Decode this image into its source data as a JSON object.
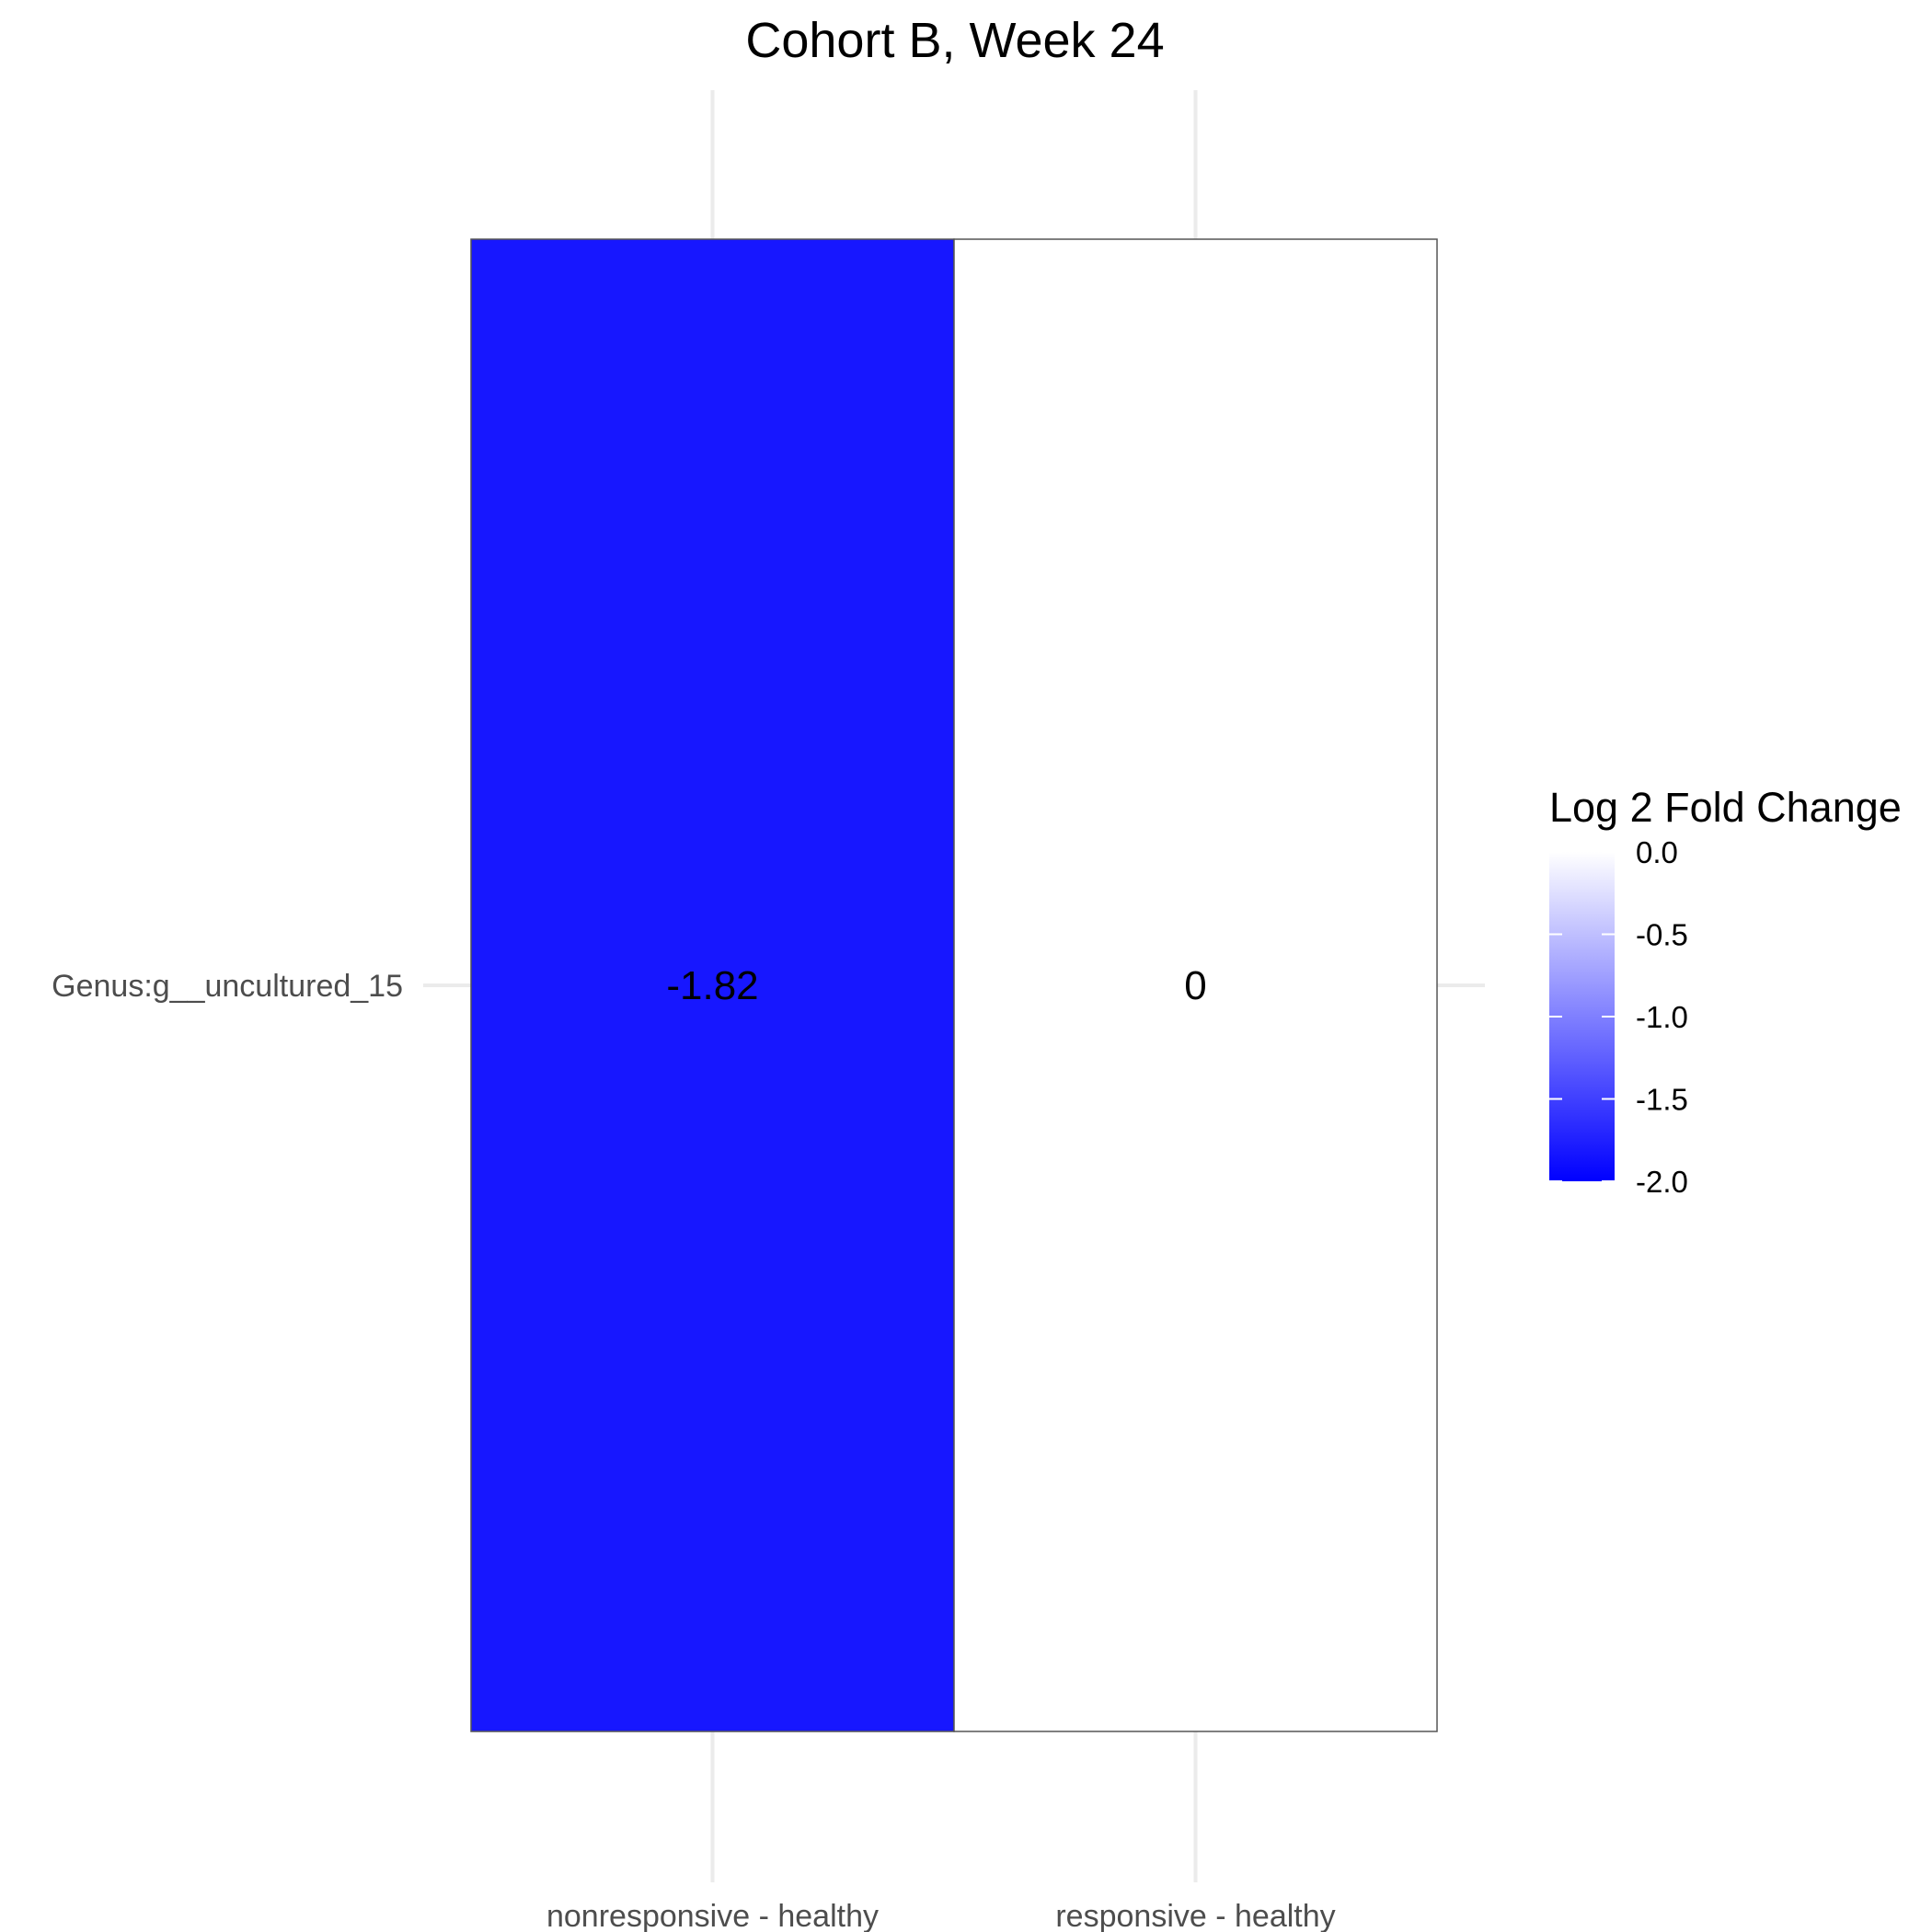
{
  "chart_data": {
    "type": "heatmap",
    "title": "Cohort B, Week 24",
    "xlabel": "",
    "ylabel": "",
    "x_categories": [
      "nonresponsive - healthy",
      "responsive - healthy"
    ],
    "y_categories": [
      "Genus:g__uncultured_15"
    ],
    "cells": [
      {
        "x": "nonresponsive - healthy",
        "y": "Genus:g__uncultured_15",
        "value": -1.82,
        "label": "-1.82"
      },
      {
        "x": "responsive - healthy",
        "y": "Genus:g__uncultured_15",
        "value": 0,
        "label": "0"
      }
    ],
    "legend": {
      "title": "Log 2 Fold Change",
      "position": "right",
      "range": [
        -2.0,
        0.0
      ],
      "ticks": [
        {
          "value": 0.0,
          "label": "0.0"
        },
        {
          "value": -0.5,
          "label": "-0.5"
        },
        {
          "value": -1.0,
          "label": "-1.0"
        },
        {
          "value": -1.5,
          "label": "-1.5"
        },
        {
          "value": -2.0,
          "label": "-2.0"
        }
      ],
      "color_low": "#0000ff",
      "color_high": "#ffffff"
    },
    "grid": true
  }
}
